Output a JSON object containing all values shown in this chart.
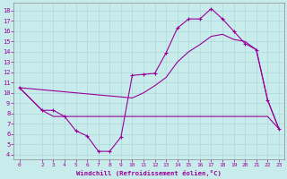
{
  "xlabel": "Windchill (Refroidissement éolien,°C)",
  "bg_color": "#c8ecec",
  "line_color": "#990099",
  "xlim": [
    -0.5,
    23.5
  ],
  "ylim": [
    3.5,
    18.8
  ],
  "xticks": [
    0,
    2,
    3,
    4,
    5,
    6,
    7,
    8,
    9,
    10,
    11,
    12,
    13,
    14,
    15,
    16,
    17,
    18,
    19,
    20,
    21,
    22,
    23
  ],
  "yticks": [
    4,
    5,
    6,
    7,
    8,
    9,
    10,
    11,
    12,
    13,
    14,
    15,
    16,
    17,
    18
  ],
  "line1_x": [
    0,
    2,
    3,
    4,
    5,
    6,
    7,
    8,
    9,
    10,
    11,
    12,
    13,
    14,
    15,
    16,
    17,
    18,
    19,
    20,
    21,
    22,
    23
  ],
  "line1_y": [
    10.5,
    8.3,
    8.3,
    7.7,
    6.3,
    5.8,
    4.3,
    4.3,
    5.7,
    11.7,
    11.8,
    11.9,
    13.9,
    16.3,
    17.2,
    17.2,
    18.2,
    17.2,
    16.0,
    14.8,
    14.2,
    9.3,
    6.5
  ],
  "line2_x": [
    0,
    2,
    3,
    4,
    5,
    6,
    7,
    8,
    9,
    10,
    11,
    12,
    13,
    14,
    15,
    16,
    17,
    18,
    19,
    20,
    21,
    22,
    23
  ],
  "line2_y": [
    10.5,
    8.3,
    7.7,
    7.7,
    7.7,
    7.7,
    7.7,
    7.7,
    7.7,
    7.7,
    7.7,
    7.7,
    7.7,
    7.7,
    7.7,
    7.7,
    7.7,
    7.7,
    7.7,
    7.7,
    7.7,
    7.7,
    6.5
  ],
  "line3_x": [
    0,
    10,
    11,
    12,
    13,
    14,
    15,
    16,
    17,
    18,
    19,
    20,
    21,
    22,
    23
  ],
  "line3_y": [
    10.5,
    9.5,
    10.0,
    10.7,
    11.5,
    13.0,
    14.0,
    14.7,
    15.5,
    15.7,
    15.2,
    15.0,
    14.2,
    9.3,
    6.5
  ]
}
